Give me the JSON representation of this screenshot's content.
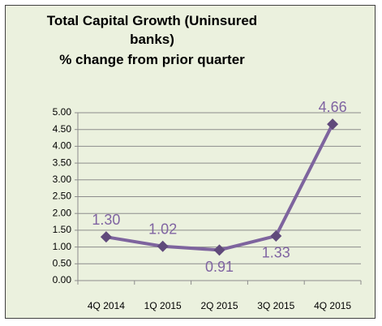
{
  "chart_data": {
    "type": "line",
    "title": "Total Capital Growth (Uninsured banks)",
    "subtitle": "% change from prior quarter",
    "categories": [
      "4Q 2014",
      "1Q 2015",
      "2Q 2015",
      "3Q 2015",
      "4Q 2015"
    ],
    "series": [
      {
        "name": "Total Capital Growth",
        "color": "#7e649e",
        "values": [
          1.3,
          1.02,
          0.91,
          1.33,
          4.66
        ],
        "value_labels": [
          "1.30",
          "1.02",
          "0.91",
          "1.33",
          "4.66"
        ]
      }
    ],
    "ylim": [
      0,
      5
    ],
    "yticks": [
      {
        "value": 0,
        "label": "0.00"
      },
      {
        "value": 0.5,
        "label": "0.50"
      },
      {
        "value": 1,
        "label": "1.00"
      },
      {
        "value": 1.5,
        "label": "1.50"
      },
      {
        "value": 2,
        "label": "2.00"
      },
      {
        "value": 2.5,
        "label": "2.50"
      },
      {
        "value": 3,
        "label": "3.00"
      },
      {
        "value": 3.5,
        "label": "3.50"
      },
      {
        "value": 4,
        "label": "4.00"
      },
      {
        "value": 4.5,
        "label": "4.50"
      },
      {
        "value": 5,
        "label": "5.00"
      }
    ],
    "grid": true
  }
}
